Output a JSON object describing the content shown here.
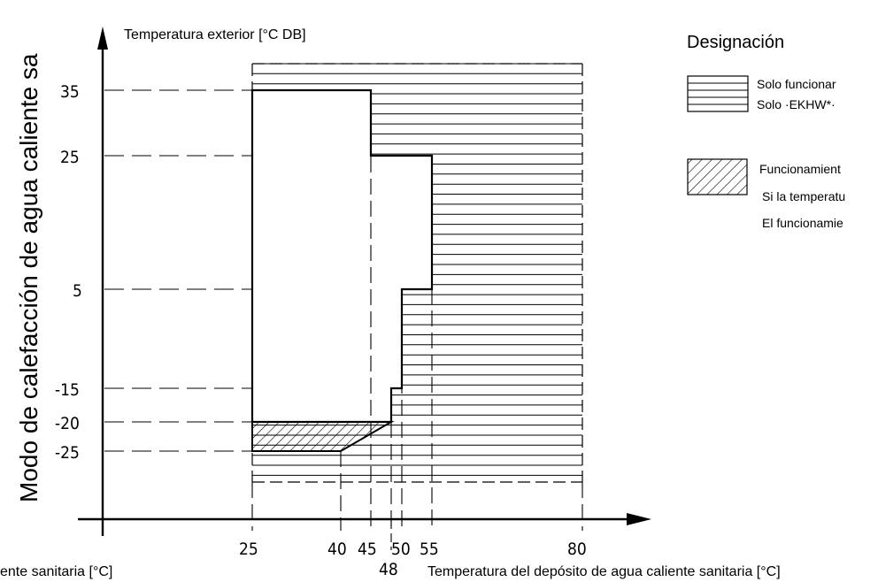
{
  "chart_data": {
    "type": "diagram",
    "y_axis_title": "Modo de calefacción de agua caliente sa",
    "y_axis_subtitle": "Temperatura exterior [°C DB]",
    "x_axis_title": "Temperatura del depósito de agua caliente sanitaria [°C]",
    "x_axis_title_left_fragment": "ente sanitaria [°C]",
    "x_ticks": [
      "25",
      "40",
      "45",
      "50",
      "55",
      "80"
    ],
    "x_tick_48": "48",
    "y_ticks": [
      "35",
      "25",
      "5",
      "-15",
      "-20",
      "-25"
    ],
    "boundary_outline": [
      [
        25,
        35
      ],
      [
        45,
        35
      ],
      [
        45,
        25
      ],
      [
        55,
        25
      ],
      [
        55,
        5
      ],
      [
        50,
        5
      ],
      [
        50,
        -15
      ],
      [
        48,
        -15
      ],
      [
        48,
        -20
      ],
      [
        25,
        -20
      ]
    ],
    "hatched_region": [
      [
        25,
        -20
      ],
      [
        48,
        -20
      ],
      [
        40,
        -25
      ],
      [
        25,
        -25
      ]
    ]
  },
  "legend": {
    "title": "Designación",
    "item1_line1": "Solo funcionar",
    "item1_line2": "Solo ·EKHW*·",
    "item2_line1": "Funcionamient",
    "item2_line2": "Si la temperatu",
    "item2_line3": "El funcionamie"
  }
}
